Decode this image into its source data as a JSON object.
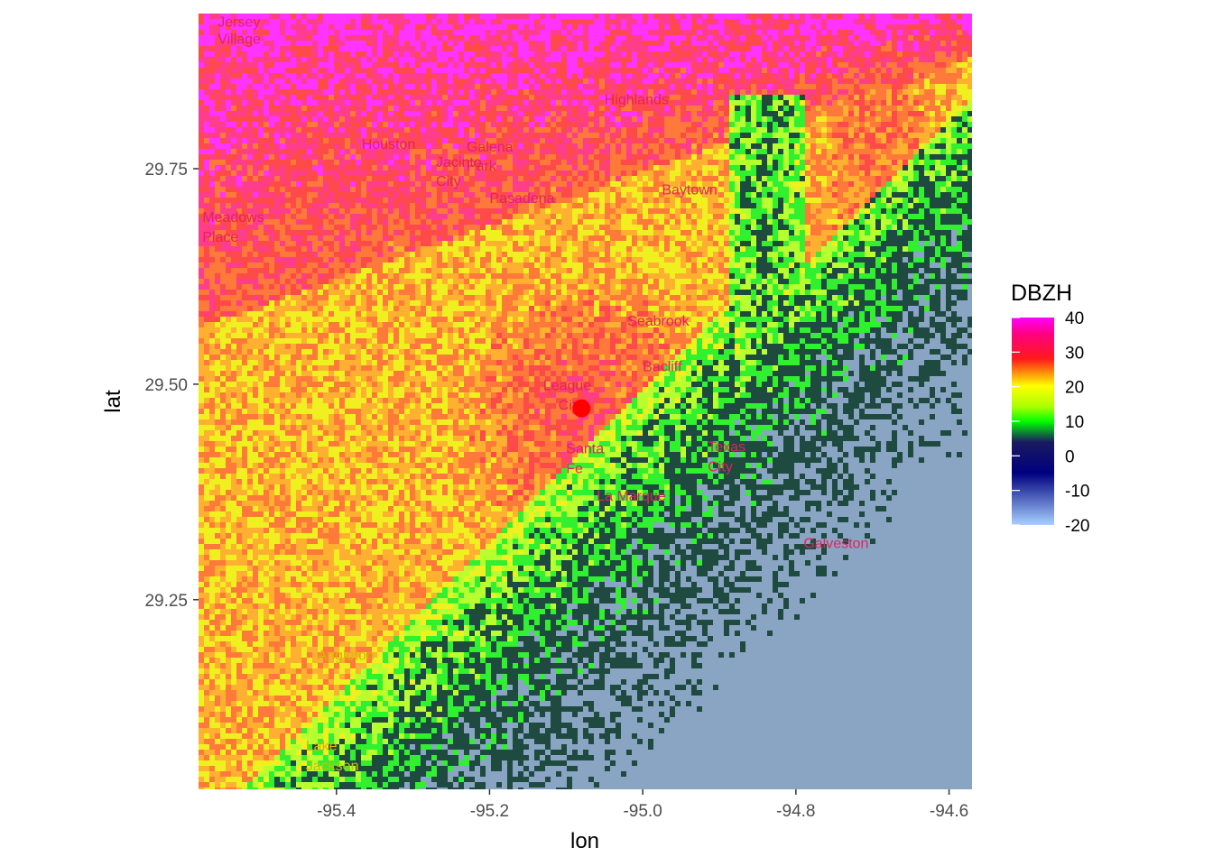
{
  "map": {
    "x_axis": {
      "title": "lon",
      "ticks": [
        -95.4,
        -95.2,
        -95.0,
        -94.8,
        -94.6
      ],
      "tick_labels": [
        "-95.4",
        "-95.2",
        "-95.0",
        "-94.8",
        "-94.6"
      ],
      "range": [
        -95.58,
        -94.57
      ]
    },
    "y_axis": {
      "title": "lat",
      "ticks": [
        29.25,
        29.5,
        29.75
      ],
      "tick_labels": [
        "29.25",
        "29.50",
        "29.75"
      ],
      "range": [
        29.03,
        29.93
      ]
    },
    "radar_site": {
      "lon": -95.08,
      "lat": 29.472,
      "color": "#ff0000"
    },
    "places": [
      {
        "name": "Jersey",
        "lon": -95.555,
        "lat": 29.915
      },
      {
        "name": "Village",
        "lon": -95.555,
        "lat": 29.895
      },
      {
        "name": "Highlands",
        "lon": -95.05,
        "lat": 29.825
      },
      {
        "name": "Houston",
        "lon": -95.367,
        "lat": 29.773
      },
      {
        "name": "Galena",
        "lon": -95.23,
        "lat": 29.77
      },
      {
        "name": "Park",
        "lon": -95.23,
        "lat": 29.748
      },
      {
        "name": "Jacinto",
        "lon": -95.27,
        "lat": 29.752
      },
      {
        "name": "City",
        "lon": -95.27,
        "lat": 29.73
      },
      {
        "name": "Pasadena",
        "lon": -95.2,
        "lat": 29.71
      },
      {
        "name": "Baytown",
        "lon": -94.975,
        "lat": 29.72
      },
      {
        "name": "Meadows",
        "lon": -95.575,
        "lat": 29.688
      },
      {
        "name": "Place",
        "lon": -95.575,
        "lat": 29.665
      },
      {
        "name": "Seabrook",
        "lon": -95.02,
        "lat": 29.568
      },
      {
        "name": "Bacliff",
        "lon": -95.0,
        "lat": 29.515
      },
      {
        "name": "League",
        "lon": -95.13,
        "lat": 29.493
      },
      {
        "name": "City",
        "lon": -95.11,
        "lat": 29.47
      },
      {
        "name": "Santa",
        "lon": -95.1,
        "lat": 29.42
      },
      {
        "name": "Fe",
        "lon": -95.1,
        "lat": 29.397
      },
      {
        "name": "Texas",
        "lon": -94.915,
        "lat": 29.422
      },
      {
        "name": "City",
        "lon": -94.915,
        "lat": 29.399
      },
      {
        "name": "La Marque",
        "lon": -95.06,
        "lat": 29.365
      },
      {
        "name": "Galveston",
        "lon": -94.79,
        "lat": 29.31
      },
      {
        "name": "Angleton",
        "lon": -95.425,
        "lat": 29.18
      },
      {
        "name": "Lake",
        "lon": -95.44,
        "lat": 29.075
      },
      {
        "name": "Jackson",
        "lon": -95.44,
        "lat": 29.052
      }
    ]
  },
  "legend": {
    "title": "DBZH",
    "labels": [
      "40",
      "30",
      "20",
      "10",
      "0",
      "-10",
      "-20"
    ],
    "values": [
      40,
      30,
      20,
      10,
      0,
      -10,
      -20
    ],
    "colors": [
      "#ff00ff",
      "#ff0080",
      "#ff1a1a",
      "#ff8800",
      "#ffff00",
      "#99ff00",
      "#00ff00",
      "#1a1a60",
      "#000080",
      "#a0c8ff"
    ]
  }
}
